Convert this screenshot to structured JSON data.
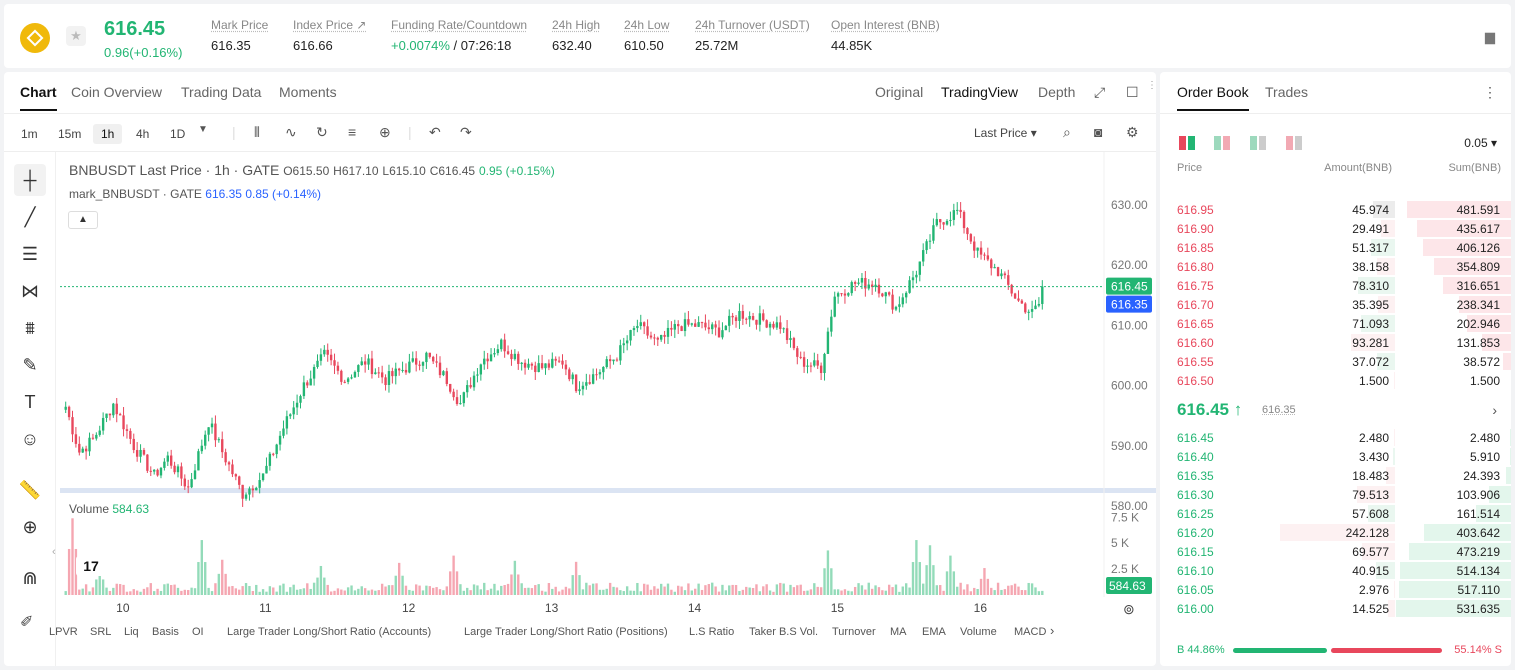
{
  "header": {
    "last_price": "616.45",
    "change": "0.96(+0.16%)",
    "stats": [
      {
        "label": "Mark Price",
        "value": "616.35"
      },
      {
        "label": "Index Price ↗",
        "value": "616.66"
      },
      {
        "label": "Funding Rate/Countdown",
        "value_green": "+0.0074%",
        "value": " / 07:26:18"
      },
      {
        "label": "24h High",
        "value": "632.40"
      },
      {
        "label": "24h Low",
        "value": "610.50"
      },
      {
        "label": "24h Turnover (USDT)",
        "value": "25.72M"
      },
      {
        "label": "Open Interest (BNB)",
        "value": "44.85K"
      }
    ]
  },
  "chart_tabs": [
    "Chart",
    "Coin Overview",
    "Trading Data",
    "Moments"
  ],
  "chart_views": [
    "Original",
    "TradingView",
    "Depth"
  ],
  "timeframes": [
    "1m",
    "15m",
    "1h",
    "4h",
    "1D"
  ],
  "price_source": "Last Price",
  "legend": {
    "symbol": "BNBUSDT Last Price · 1h · GATE",
    "o": "O615.50",
    "h": "H617.10",
    "l": "L615.10",
    "c": "C616.45",
    "chg": "0.95 (+0.15%)",
    "mark_label": "mark_BNBUSDT · GATE",
    "mark_value": "616.35",
    "mark_chg": "0.85 (+0.14%)",
    "volume_label": "Volume",
    "volume_value": "584.63",
    "tv_logo": "17"
  },
  "price_tags": {
    "last": "616.45",
    "mark": "616.35",
    "volume": "584.63"
  },
  "indicators": [
    "LPVR",
    "SRL",
    "Liq",
    "Basis",
    "OI",
    "Large Trader Long/Short Ratio (Accounts)",
    "Large Trader Long/Short Ratio (Positions)",
    "L.S Ratio",
    "Taker B.S Vol.",
    "Turnover",
    "MA",
    "EMA",
    "Volume",
    "MACD"
  ],
  "chart_data": {
    "type": "candlestick",
    "price_axis": {
      "ticks": [
        "630.00",
        "620.00",
        "610.00",
        "600.00",
        "590.00",
        "580.00"
      ],
      "ylim": [
        576.5,
        633
      ]
    },
    "volume_axis": {
      "ticks": [
        "7.5 K",
        "5 K",
        "2.5 K"
      ],
      "ylim": [
        0,
        8200
      ]
    },
    "x_ticks": [
      "10",
      "11",
      "12",
      "13",
      "14",
      "15",
      "16"
    ],
    "x_tick_index": [
      16,
      58,
      100,
      142,
      184,
      226,
      268
    ],
    "candles_count": 288,
    "anchors": [
      [
        0,
        596.5
      ],
      [
        4,
        589
      ],
      [
        8,
        591
      ],
      [
        14,
        597
      ],
      [
        20,
        590
      ],
      [
        26,
        585
      ],
      [
        30,
        588
      ],
      [
        36,
        583
      ],
      [
        42,
        594
      ],
      [
        46,
        589
      ],
      [
        52,
        582
      ],
      [
        58,
        585
      ],
      [
        64,
        593
      ],
      [
        70,
        600
      ],
      [
        76,
        605
      ],
      [
        82,
        601
      ],
      [
        88,
        604
      ],
      [
        94,
        601
      ],
      [
        100,
        603
      ],
      [
        106,
        605
      ],
      [
        112,
        601
      ],
      [
        116,
        597
      ],
      [
        122,
        604
      ],
      [
        128,
        607
      ],
      [
        134,
        604
      ],
      [
        140,
        603
      ],
      [
        146,
        604
      ],
      [
        150,
        600
      ],
      [
        156,
        602
      ],
      [
        162,
        605
      ],
      [
        168,
        610
      ],
      [
        174,
        607
      ],
      [
        180,
        610
      ],
      [
        186,
        610
      ],
      [
        192,
        609
      ],
      [
        198,
        612
      ],
      [
        204,
        611
      ],
      [
        210,
        610
      ],
      [
        216,
        604
      ],
      [
        222,
        603
      ],
      [
        226,
        615
      ],
      [
        232,
        617
      ],
      [
        238,
        617
      ],
      [
        244,
        613
      ],
      [
        250,
        619
      ],
      [
        256,
        627
      ],
      [
        262,
        629
      ],
      [
        268,
        622
      ],
      [
        274,
        619
      ],
      [
        280,
        614
      ],
      [
        284,
        612
      ],
      [
        288,
        615
      ]
    ],
    "volume_peaks": [
      [
        2,
        7400
      ],
      [
        10,
        2500
      ],
      [
        40,
        5300
      ],
      [
        46,
        3400
      ],
      [
        75,
        2800
      ],
      [
        98,
        3100
      ],
      [
        114,
        3800
      ],
      [
        132,
        3300
      ],
      [
        150,
        3200
      ],
      [
        224,
        4300
      ],
      [
        250,
        5300
      ],
      [
        254,
        4800
      ],
      [
        260,
        3800
      ],
      [
        270,
        2600
      ]
    ]
  },
  "orderbook": {
    "tabs": [
      "Order Book",
      "Trades"
    ],
    "precision": "0.05",
    "headers": [
      "Price",
      "Amount(BNB)",
      "Sum(BNB)"
    ],
    "asks": [
      {
        "price": "616.95",
        "amount": "45.974",
        "sum": "481.591"
      },
      {
        "price": "616.90",
        "amount": "29.491",
        "sum": "435.617"
      },
      {
        "price": "616.85",
        "amount": "51.317",
        "sum": "406.126"
      },
      {
        "price": "616.80",
        "amount": "38.158",
        "sum": "354.809"
      },
      {
        "price": "616.75",
        "amount": "78.310",
        "sum": "316.651"
      },
      {
        "price": "616.70",
        "amount": "35.395",
        "sum": "238.341"
      },
      {
        "price": "616.65",
        "amount": "71.093",
        "sum": "202.946"
      },
      {
        "price": "616.60",
        "amount": "93.281",
        "sum": "131.853"
      },
      {
        "price": "616.55",
        "amount": "37.072",
        "sum": "38.572"
      },
      {
        "price": "616.50",
        "amount": "1.500",
        "sum": "1.500"
      }
    ],
    "mid_price": "616.45 ↑",
    "mid_mark": "616.35",
    "bids": [
      {
        "price": "616.45",
        "amount": "2.480",
        "sum": "2.480"
      },
      {
        "price": "616.40",
        "amount": "3.430",
        "sum": "5.910"
      },
      {
        "price": "616.35",
        "amount": "18.483",
        "sum": "24.393"
      },
      {
        "price": "616.30",
        "amount": "79.513",
        "sum": "103.906"
      },
      {
        "price": "616.25",
        "amount": "57.608",
        "sum": "161.514"
      },
      {
        "price": "616.20",
        "amount": "242.128",
        "sum": "403.642"
      },
      {
        "price": "616.15",
        "amount": "69.577",
        "sum": "473.219"
      },
      {
        "price": "616.10",
        "amount": "40.915",
        "sum": "514.134"
      },
      {
        "price": "616.05",
        "amount": "2.976",
        "sum": "517.110"
      },
      {
        "price": "616.00",
        "amount": "14.525",
        "sum": "531.635"
      }
    ],
    "buy_ratio": "B 44.86%",
    "sell_ratio": "55.14% S",
    "buy_fraction": 0.4486
  },
  "colors": {
    "up": "#22b573",
    "down": "#e8475c",
    "mark": "#2962ff"
  }
}
